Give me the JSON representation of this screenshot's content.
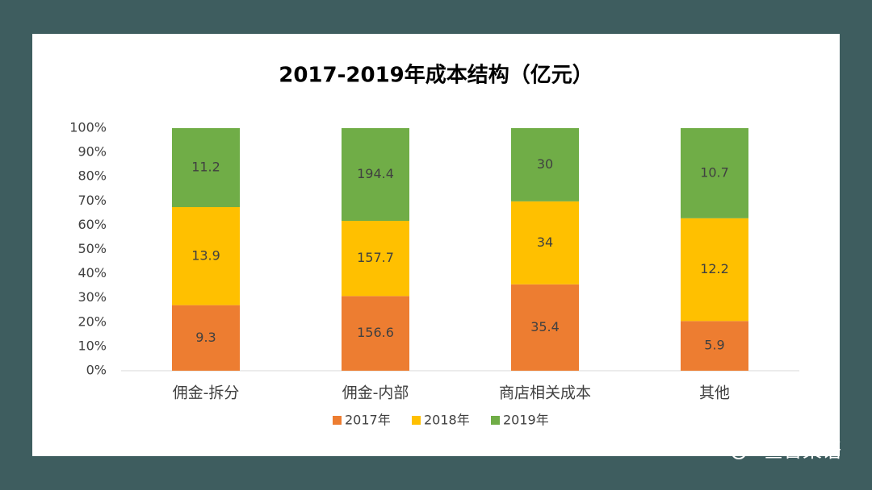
{
  "chart_data": {
    "type": "bar",
    "stacking": "percent",
    "title": "2017-2019年成本结构（亿元）",
    "categories": [
      "佣金-拆分",
      "佣金-内部",
      "商店相关成本",
      "其他"
    ],
    "series": [
      {
        "name": "2017年",
        "color": "#ed7d31",
        "values": [
          9.3,
          156.6,
          35.4,
          5.9
        ]
      },
      {
        "name": "2018年",
        "color": "#ffc000",
        "values": [
          13.9,
          157.7,
          34,
          12.2
        ]
      },
      {
        "name": "2019年",
        "color": "#70ad47",
        "values": [
          11.2,
          194.4,
          30,
          10.7
        ]
      }
    ],
    "ylim": [
      0,
      100
    ],
    "yticks": [
      {
        "value": 0,
        "label": "0%"
      },
      {
        "value": 10,
        "label": "10%"
      },
      {
        "value": 20,
        "label": "20%"
      },
      {
        "value": 30,
        "label": "30%"
      },
      {
        "value": 40,
        "label": "40%"
      },
      {
        "value": 50,
        "label": "50%"
      },
      {
        "value": 60,
        "label": "60%"
      },
      {
        "value": 70,
        "label": "70%"
      },
      {
        "value": 80,
        "label": "80%"
      },
      {
        "value": 90,
        "label": "90%"
      },
      {
        "value": 100,
        "label": "100%"
      }
    ],
    "grid": false,
    "legend": "bottom"
  },
  "watermark": "叁言梁语"
}
